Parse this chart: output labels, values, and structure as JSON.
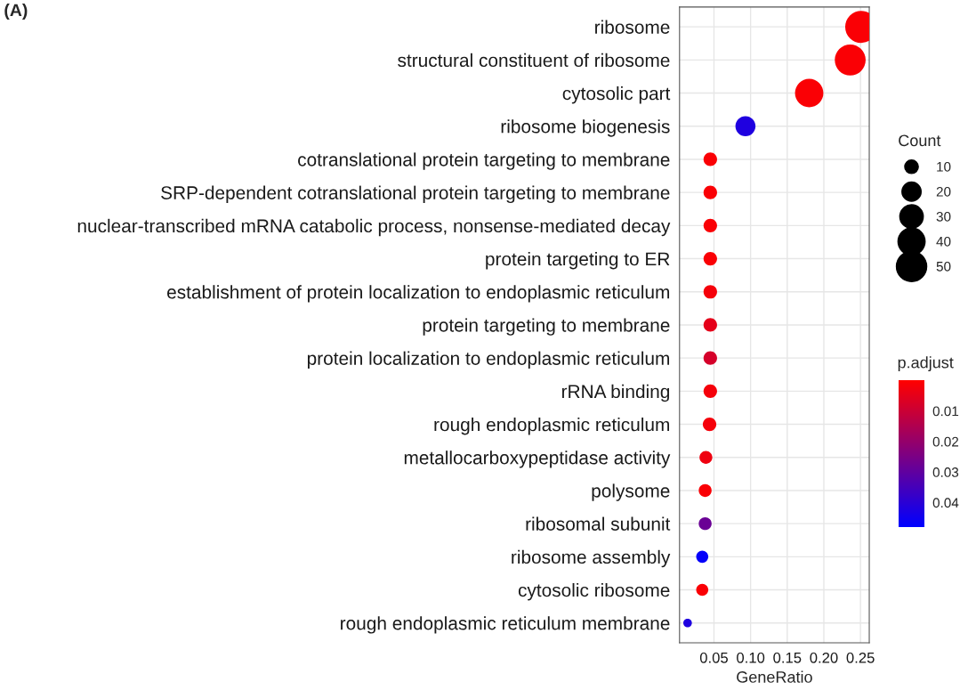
{
  "chart_data": {
    "type": "bubble",
    "orientation": "horizontal",
    "categories": [
      "ribosome",
      "structural constituent of ribosome",
      "cytosolic part",
      "ribosome biogenesis",
      "cotranslational protein targeting to membrane",
      "SRP-dependent cotranslational protein targeting to membrane",
      "nuclear-transcribed mRNA catabolic process, nonsense-mediated decay",
      "protein targeting to ER",
      "establishment of protein localization to endoplasmic reticulum",
      "protein targeting to membrane",
      "protein localization to endoplasmic reticulum",
      "rRNA binding",
      "rough endoplasmic reticulum",
      "metallocarboxypeptidase activity",
      "polysome",
      "ribosomal subunit",
      "ribosome assembly",
      "cytosolic ribosome",
      "rough endoplasmic reticulum membrane"
    ],
    "values": [
      0.251,
      0.236,
      0.18,
      0.093,
      0.045,
      0.045,
      0.045,
      0.045,
      0.045,
      0.045,
      0.045,
      0.045,
      0.044,
      0.039,
      0.038,
      0.038,
      0.034,
      0.034,
      0.014
    ],
    "sizes": [
      56,
      52,
      44,
      22,
      10,
      10,
      10,
      10,
      10,
      10,
      10,
      10,
      10,
      9,
      9,
      9,
      8,
      8,
      4
    ],
    "cvalues": [
      0.001,
      0.001,
      0.001,
      0.042,
      0.001,
      0.001,
      0.001,
      0.001,
      0.002,
      0.005,
      0.008,
      0.002,
      0.002,
      0.003,
      0.001,
      0.028,
      0.047,
      0.001,
      0.042
    ],
    "size_legend": [
      10,
      20,
      30,
      40,
      50
    ],
    "legend_title": "Count",
    "clabel": "p.adjust",
    "clim": [
      0.0,
      0.048
    ],
    "cticks": [
      0.01,
      0.02,
      0.03,
      0.04
    ],
    "xlabel": "GeneRatio",
    "xlim": [
      0.003,
      0.262
    ],
    "xticks": [
      0.05,
      {
        "value": 0.1,
        "label": "0.10"
      },
      0.15,
      {
        "value": 0.2,
        "label": "0.20"
      },
      0.25
    ],
    "grid": true,
    "annotations": [
      "(A)"
    ]
  }
}
